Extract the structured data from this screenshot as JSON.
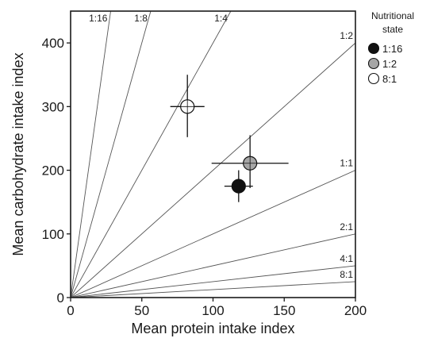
{
  "chart_data": {
    "type": "scatter",
    "xlabel": "Mean protein intake index",
    "ylabel": "Mean carbohydrate intake index",
    "xlim": [
      0,
      200
    ],
    "ylim": [
      0,
      450
    ],
    "xticks": [
      0,
      50,
      100,
      150,
      200
    ],
    "xtick_labels": [
      "0",
      "50",
      "100",
      "150",
      "200"
    ],
    "yticks": [
      0,
      100,
      200,
      300,
      400
    ],
    "ytick_labels": [
      "0",
      "100",
      "200",
      "300",
      "400"
    ],
    "grid": false,
    "legend": {
      "title_lines": [
        "Nutritional",
        "state"
      ],
      "placement": "right",
      "entries": [
        {
          "label": "1:16",
          "color": "#111111"
        },
        {
          "label": "1:2",
          "color": "#a6a6a6"
        },
        {
          "label": "8:1",
          "color": "#ffffff"
        }
      ]
    },
    "ratio_lines": [
      {
        "label": "1:16",
        "protein": 1,
        "carbohydrate": 16
      },
      {
        "label": "1:8",
        "protein": 1,
        "carbohydrate": 8
      },
      {
        "label": "1:4",
        "protein": 1,
        "carbohydrate": 4
      },
      {
        "label": "1:2",
        "protein": 1,
        "carbohydrate": 2
      },
      {
        "label": "1:1",
        "protein": 1,
        "carbohydrate": 1
      },
      {
        "label": "2:1",
        "protein": 2,
        "carbohydrate": 1
      },
      {
        "label": "4:1",
        "protein": 4,
        "carbohydrate": 1
      },
      {
        "label": "8:1",
        "protein": 8,
        "carbohydrate": 1
      }
    ],
    "points": [
      {
        "name": "1:16",
        "color": "#111111",
        "x": 118,
        "y": 175,
        "x_err": [
          108,
          128
        ],
        "y_err": [
          150,
          200
        ]
      },
      {
        "name": "1:2",
        "color": "#a6a6a6",
        "x": 126,
        "y": 211,
        "x_err": [
          99,
          153
        ],
        "y_err": [
          172,
          255
        ]
      },
      {
        "name": "8:1",
        "color": "#ffffff",
        "x": 82,
        "y": 300,
        "x_err": [
          70,
          94
        ],
        "y_err": [
          252,
          350
        ]
      }
    ]
  }
}
